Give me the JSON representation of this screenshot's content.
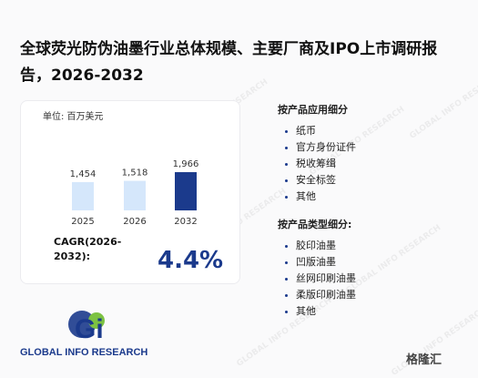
{
  "title": "全球荧光防伪油墨行业总体规模、主要厂商及IPO上市调研报告，2026-2032",
  "chart_data": {
    "type": "bar",
    "unit": "单位: 百万美元",
    "categories": [
      "2025",
      "2026",
      "2032"
    ],
    "values": [
      1454,
      1518,
      1966
    ],
    "value_labels": [
      "1,454",
      "1,518",
      "1,966"
    ],
    "colors": [
      "#d5e7fb",
      "#d5e7fb",
      "#1b3a8c"
    ]
  },
  "cagr": {
    "label": "CAGR(2026-2032):",
    "value": "4.4%"
  },
  "segments": [
    {
      "title": "按产品应用细分",
      "items": [
        "纸币",
        "官方身份证件",
        "税收筹缉",
        "安全标签",
        "其他"
      ]
    },
    {
      "title": "按产品类型细分:",
      "items": [
        "胶印油墨",
        "凹版油墨",
        "丝网印刷油墨",
        "柔版印刷油墨",
        "其他"
      ]
    }
  ],
  "logo": {
    "mark": "Gi",
    "name": "GLOBAL INFO RESEARCH"
  },
  "watermark": "GLOBAL INFO RESEARCH",
  "badge": "格隆汇"
}
